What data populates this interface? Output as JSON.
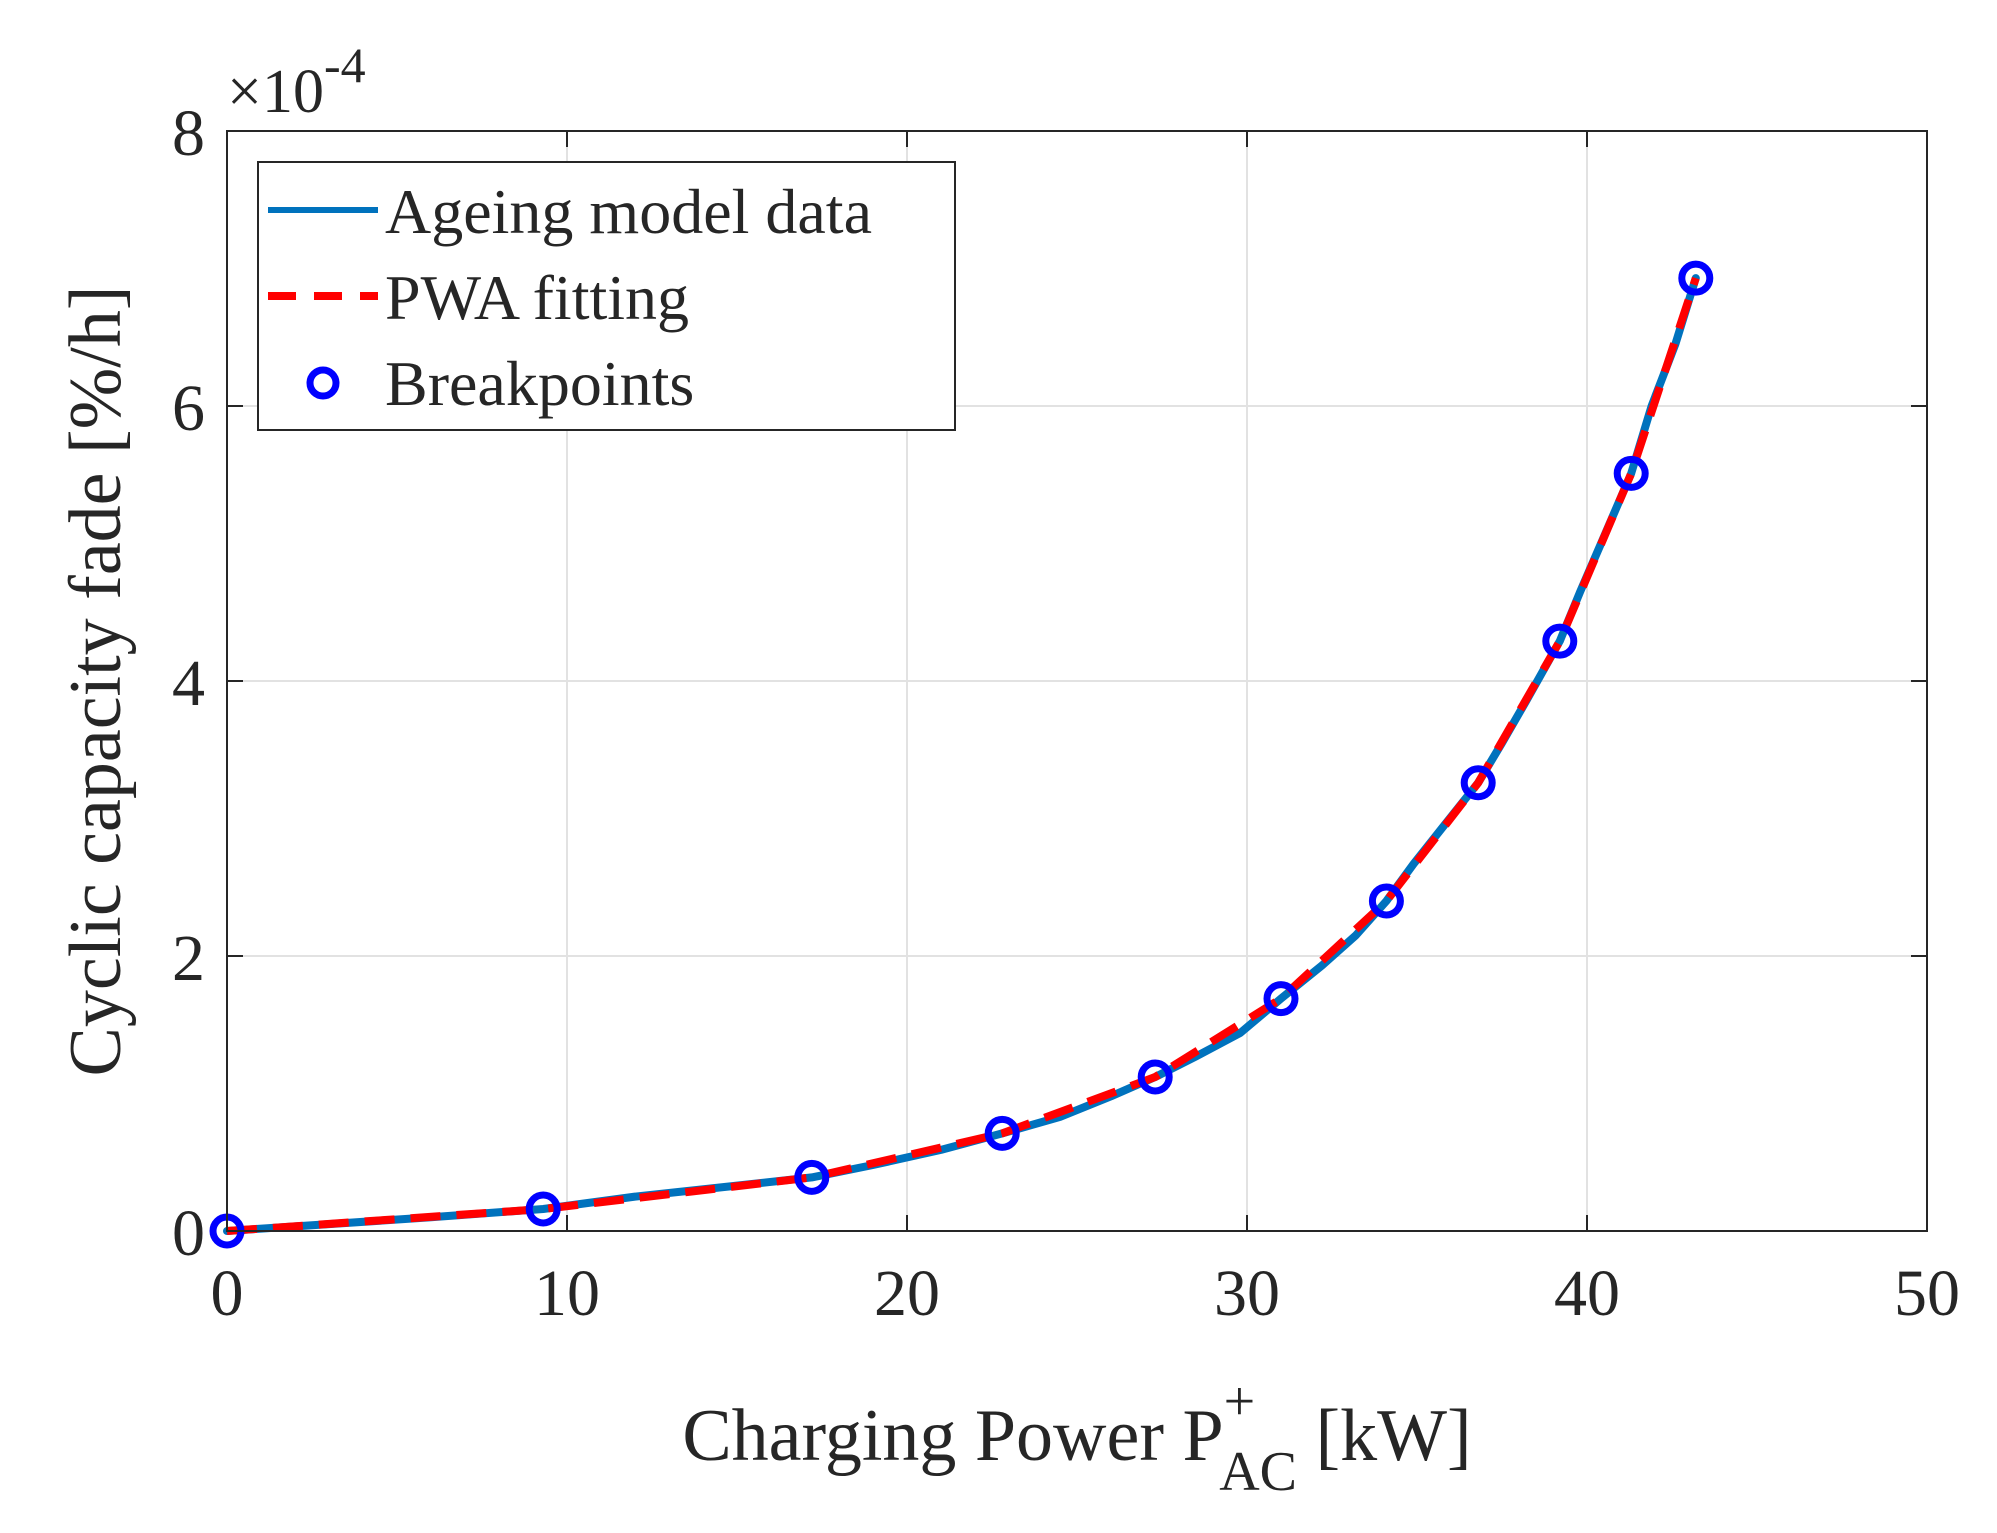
{
  "chart_data": {
    "type": "line",
    "ylabel": "Cyclic capacity fade [%/h]",
    "xlabel_main": "Charging Power P",
    "xlabel_sup": "+",
    "xlabel_sub": "AC",
    "xlabel_unit": " [kW]",
    "exponent_times": "×10",
    "exponent_power": "-4",
    "xlim": [
      0,
      50
    ],
    "ylim": [
      0,
      8
    ],
    "xticks": [
      0,
      10,
      20,
      30,
      40,
      50
    ],
    "yticks": [
      0,
      2,
      4,
      6,
      8
    ],
    "xtick_labels": [
      "0",
      "10",
      "20",
      "30",
      "40",
      "50"
    ],
    "ytick_labels": [
      "0",
      "2",
      "4",
      "6",
      "8"
    ],
    "grid": true,
    "legend_position": "top-left",
    "series": [
      {
        "name": "Ageing model data",
        "style": "solid",
        "color": "#0072BD",
        "x": [
          0,
          3,
          6,
          9.3,
          12,
          15,
          17.2,
          19,
          21,
          22.8,
          24.5,
          26,
          27.3,
          28.5,
          29.8,
          31,
          32.2,
          33.2,
          34.1,
          34.9,
          35.8,
          36.8,
          37.5,
          38.2,
          39.2,
          39.8,
          40.5,
          41.3,
          41.9,
          42.6,
          43.2
        ],
        "y": [
          0,
          0.05,
          0.1,
          0.16,
          0.25,
          0.33,
          0.39,
          0.48,
          0.59,
          0.71,
          0.83,
          0.98,
          1.12,
          1.27,
          1.44,
          1.69,
          1.93,
          2.15,
          2.4,
          2.67,
          2.95,
          3.26,
          3.55,
          3.85,
          4.29,
          4.65,
          5.05,
          5.51,
          6.0,
          6.45,
          6.93
        ]
      },
      {
        "name": "PWA fitting",
        "style": "dashed",
        "color": "#FF0000",
        "x": [
          0,
          9.3,
          17.2,
          22.8,
          27.3,
          31.0,
          34.1,
          36.8,
          39.2,
          41.3,
          43.2
        ],
        "y": [
          0,
          0.16,
          0.39,
          0.71,
          1.12,
          1.69,
          2.4,
          3.26,
          4.29,
          5.51,
          6.93
        ]
      },
      {
        "name": "Breakpoints",
        "style": "markers",
        "color": "#0000FF",
        "x": [
          0,
          9.3,
          17.2,
          22.8,
          27.3,
          31.0,
          34.1,
          36.8,
          39.2,
          41.3,
          43.2
        ],
        "y": [
          0,
          0.16,
          0.39,
          0.71,
          1.12,
          1.69,
          2.4,
          3.26,
          4.29,
          5.51,
          6.93
        ]
      }
    ]
  }
}
